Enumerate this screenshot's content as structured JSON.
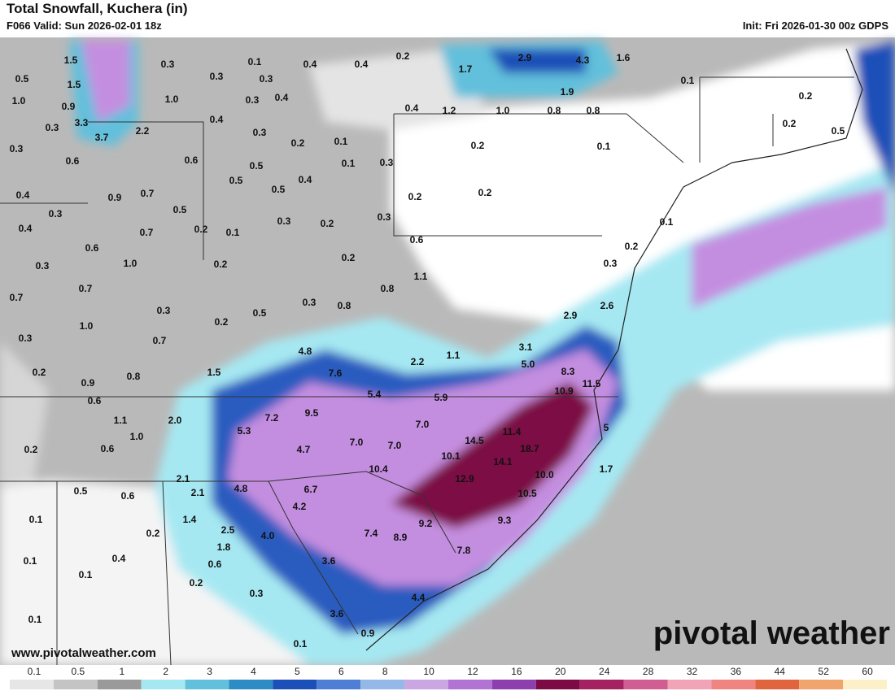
{
  "header": {
    "title": "Total Snowfall, Kuchera (in)",
    "valid": "F066 Valid: Sun 2026-02-01 18z",
    "init": "Init: Fri 2026-01-30 00z GDPS"
  },
  "map": {
    "labels": [
      "1.5",
      "0.3",
      "0.1",
      "0.4",
      "0.4",
      "0.2",
      "2.9",
      "4.3",
      "1.6",
      "0.5",
      "1.5",
      "0.3",
      "0.3",
      "1.7",
      "0.1",
      "1.0",
      "0.9",
      "1.0",
      "0.3",
      "0.4",
      "1.9",
      "0.2",
      "3.3",
      "0.4",
      "0.4",
      "1.2",
      "1.0",
      "0.8",
      "0.8",
      "0.3",
      "3.7",
      "2.2",
      "0.3",
      "0.2",
      "0.5",
      "0.2",
      "0.1",
      "0.3",
      "0.6",
      "0.6",
      "0.5",
      "0.1",
      "0.3",
      "0.2",
      "0.1",
      "0.5",
      "0.4",
      "0.4",
      "0.9",
      "0.7",
      "0.5",
      "0.2",
      "0.2",
      "0.3",
      "0.5",
      "0.3",
      "0.2",
      "0.3",
      "0.1",
      "0.4",
      "0.7",
      "0.2",
      "0.1",
      "0.6",
      "0.6",
      "0.2",
      "0.3",
      "1.0",
      "0.2",
      "0.2",
      "0.3",
      "1.1",
      "0.7",
      "0.8",
      "0.7",
      "0.3",
      "0.8",
      "2.6",
      "0.3",
      "0.5",
      "2.9",
      "1.0",
      "0.2",
      "0.3",
      "0.7",
      "4.8",
      "1.1",
      "3.1",
      "2.2",
      "5.0",
      "0.2",
      "1.5",
      "0.8",
      "7.6",
      "8.3",
      "0.9",
      "11.5",
      "5.4",
      "5.9",
      "10.9",
      "0.6",
      "9.5",
      "7.2",
      "1.1",
      "2.0",
      "7.0",
      "5.3",
      "11.4",
      "5",
      "1.0",
      "14.5",
      "0.2",
      "0.6",
      "4.7",
      "7.0",
      "7.0",
      "18.7",
      "10.1",
      "14.1",
      "10.4",
      "1.7",
      "2.1",
      "12.9",
      "10.0",
      "0.5",
      "0.6",
      "2.1",
      "4.8",
      "6.7",
      "10.5",
      "4.2",
      "0.1",
      "1.4",
      "9.2",
      "9.3",
      "0.2",
      "2.5",
      "4.0",
      "7.4",
      "8.9",
      "1.8",
      "7.8",
      "0.4",
      "0.1",
      "0.6",
      "3.6",
      "0.1",
      "0.2",
      "0.3",
      "4.4",
      "3.6",
      "0.1",
      "0.9",
      "0.1"
    ]
  },
  "footer": {
    "website": "www.pivotalweather.com",
    "logo": "pivotal weather"
  },
  "legend": {
    "labels": [
      "0.1",
      "0.5",
      "1",
      "2",
      "3",
      "4",
      "5",
      "6",
      "8",
      "10",
      "12",
      "16",
      "20",
      "24",
      "28",
      "32",
      "36",
      "44",
      "52",
      "60"
    ],
    "colors": [
      "#e6e6e6",
      "#c4c4c4",
      "#9a9a9a",
      "#a6e8f2",
      "#62c0dc",
      "#2e8cc4",
      "#1c4fb8",
      "#4f7fd4",
      "#94b8e8",
      "#caa6e2",
      "#b274d2",
      "#8e3fae",
      "#7c0a44",
      "#a3225f",
      "#cf5e92",
      "#f0a4b6",
      "#ef8480",
      "#e0643e",
      "#f0a46e",
      "#fbf0c8"
    ]
  }
}
